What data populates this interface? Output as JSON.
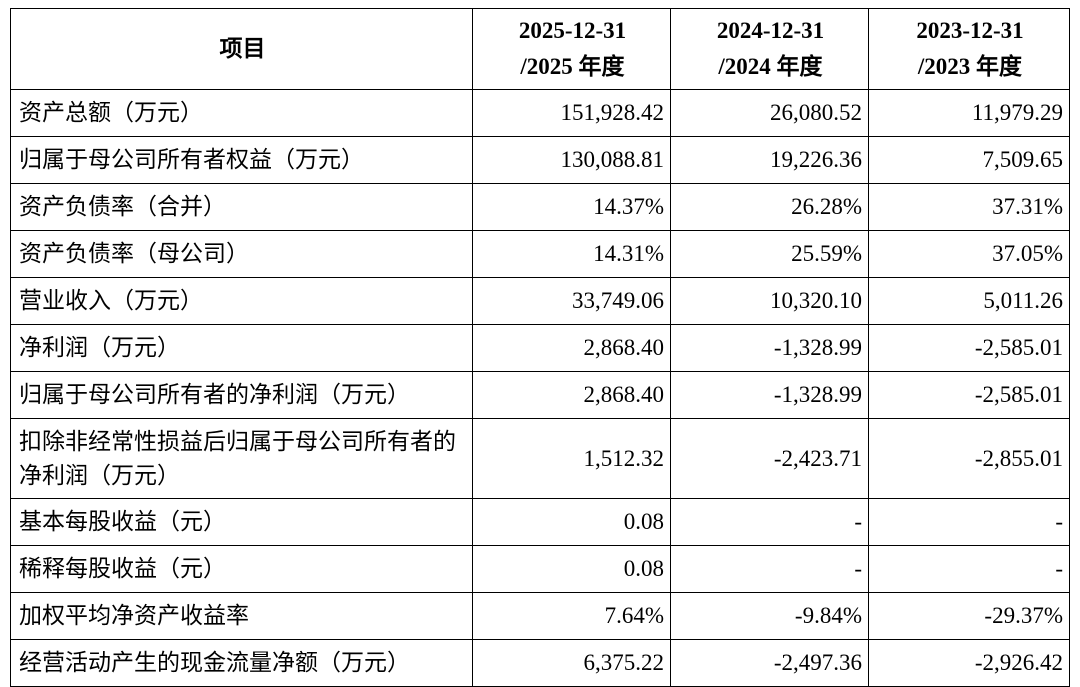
{
  "table": {
    "header": [
      [
        "项目"
      ],
      [
        "2025-12-31",
        "/2025 年度"
      ],
      [
        "2024-12-31",
        "/2024 年度"
      ],
      [
        "2023-12-31",
        "/2023 年度"
      ]
    ],
    "rows": [
      [
        "资产总额（万元）",
        "151,928.42",
        "26,080.52",
        "11,979.29"
      ],
      [
        "归属于母公司所有者权益（万元）",
        "130,088.81",
        "19,226.36",
        "7,509.65"
      ],
      [
        "资产负债率（合并）",
        "14.37%",
        "26.28%",
        "37.31%"
      ],
      [
        "资产负债率（母公司）",
        "14.31%",
        "25.59%",
        "37.05%"
      ],
      [
        "营业收入（万元）",
        "33,749.06",
        "10,320.10",
        "5,011.26"
      ],
      [
        "净利润（万元）",
        "2,868.40",
        "-1,328.99",
        "-2,585.01"
      ],
      [
        "归属于母公司所有者的净利润（万元）",
        "2,868.40",
        "-1,328.99",
        "-2,585.01"
      ],
      [
        "扣除非经常性损益后归属于母公司所有者的净利润（万元）",
        "1,512.32",
        "-2,423.71",
        "-2,855.01"
      ],
      [
        "基本每股收益（元）",
        "0.08",
        "-",
        "-"
      ],
      [
        "稀释每股收益（元）",
        "0.08",
        "-",
        "-"
      ],
      [
        "加权平均净资产收益率",
        "7.64%",
        "-9.84%",
        "-29.37%"
      ],
      [
        "经营活动产生的现金流量净额（万元）",
        "6,375.22",
        "-2,497.36",
        "-2,926.42"
      ]
    ]
  }
}
